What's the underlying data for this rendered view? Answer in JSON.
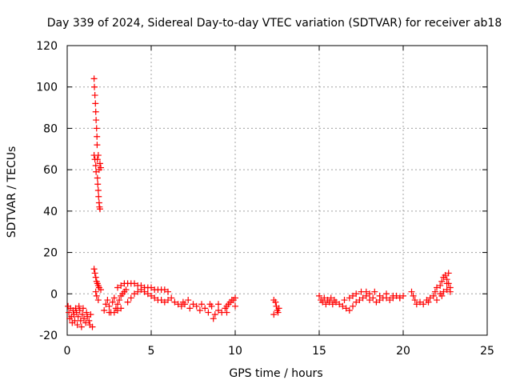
{
  "chart_data": {
    "type": "scatter",
    "title": "Day 339 of 2024, Sidereal Day-to-day VTEC variation (SDTVAR) for receiver ab18",
    "xlabel": "GPS time / hours",
    "ylabel": "SDTVAR / TECUs",
    "xlim": [
      0,
      25
    ],
    "ylim": [
      -20,
      120
    ],
    "xticks": [
      0,
      5,
      10,
      15,
      20,
      25
    ],
    "yticks": [
      -20,
      0,
      20,
      40,
      60,
      80,
      100,
      120
    ],
    "xtick_labels": [
      "0",
      "5",
      "10",
      "15",
      "20",
      "25"
    ],
    "ytick_labels": [
      "-20",
      "0",
      "20",
      "40",
      "60",
      "80",
      "100",
      "120"
    ],
    "grid": true,
    "marker": "+",
    "color": "#ff0000",
    "series": [
      {
        "name": "SDTVAR",
        "points": [
          [
            0.05,
            -6
          ],
          [
            0.1,
            -9
          ],
          [
            0.15,
            -12
          ],
          [
            0.2,
            -7
          ],
          [
            0.25,
            -11
          ],
          [
            0.3,
            -14
          ],
          [
            0.35,
            -8
          ],
          [
            0.4,
            -10
          ],
          [
            0.45,
            -13
          ],
          [
            0.5,
            -7
          ],
          [
            0.55,
            -9
          ],
          [
            0.6,
            -15
          ],
          [
            0.65,
            -11
          ],
          [
            0.7,
            -6
          ],
          [
            0.75,
            -8
          ],
          [
            0.8,
            -13
          ],
          [
            0.85,
            -16
          ],
          [
            0.9,
            -10
          ],
          [
            0.95,
            -7
          ],
          [
            1.0,
            -12
          ],
          [
            1.1,
            -14
          ],
          [
            1.15,
            -9
          ],
          [
            1.2,
            -11
          ],
          [
            1.3,
            -13
          ],
          [
            1.35,
            -15
          ],
          [
            1.4,
            -10
          ],
          [
            1.5,
            -16
          ],
          [
            1.6,
            104
          ],
          [
            1.62,
            100
          ],
          [
            1.65,
            96
          ],
          [
            1.68,
            92
          ],
          [
            1.7,
            88
          ],
          [
            1.72,
            84
          ],
          [
            1.75,
            80
          ],
          [
            1.77,
            76
          ],
          [
            1.78,
            72
          ],
          [
            1.6,
            67
          ],
          [
            1.65,
            65
          ],
          [
            1.7,
            62
          ],
          [
            1.72,
            59
          ],
          [
            1.8,
            56
          ],
          [
            1.82,
            53
          ],
          [
            1.85,
            50
          ],
          [
            1.87,
            47
          ],
          [
            1.9,
            44
          ],
          [
            1.92,
            42
          ],
          [
            1.95,
            41
          ],
          [
            1.9,
            60
          ],
          [
            1.95,
            63
          ],
          [
            2.0,
            61
          ],
          [
            1.85,
            67
          ],
          [
            1.8,
            65
          ],
          [
            1.6,
            12
          ],
          [
            1.65,
            10
          ],
          [
            1.7,
            8
          ],
          [
            1.75,
            6
          ],
          [
            1.8,
            5
          ],
          [
            1.85,
            4
          ],
          [
            1.9,
            3
          ],
          [
            2.0,
            2
          ],
          [
            1.7,
            1
          ],
          [
            1.75,
            -1
          ],
          [
            1.85,
            -3
          ],
          [
            2.2,
            -8
          ],
          [
            2.3,
            -5
          ],
          [
            2.4,
            -3
          ],
          [
            2.5,
            -6
          ],
          [
            2.6,
            -9
          ],
          [
            2.7,
            -4
          ],
          [
            2.8,
            -2
          ],
          [
            2.9,
            -7
          ],
          [
            3.0,
            -5
          ],
          [
            3.1,
            -3
          ],
          [
            3.2,
            -1
          ],
          [
            3.3,
            0
          ],
          [
            3.4,
            1
          ],
          [
            3.5,
            2
          ],
          [
            2.5,
            -9
          ],
          [
            2.8,
            -9
          ],
          [
            3.0,
            -8
          ],
          [
            3.2,
            -7
          ],
          [
            3.0,
            3
          ],
          [
            3.2,
            4
          ],
          [
            3.4,
            5
          ],
          [
            3.6,
            5
          ],
          [
            3.8,
            5
          ],
          [
            4.0,
            5
          ],
          [
            4.2,
            4
          ],
          [
            4.4,
            4
          ],
          [
            4.6,
            3
          ],
          [
            4.8,
            3
          ],
          [
            5.0,
            3
          ],
          [
            5.2,
            2
          ],
          [
            5.4,
            2
          ],
          [
            5.6,
            2
          ],
          [
            5.8,
            2
          ],
          [
            6.0,
            1
          ],
          [
            3.6,
            -4
          ],
          [
            3.8,
            -2
          ],
          [
            4.0,
            0
          ],
          [
            4.2,
            1
          ],
          [
            4.4,
            2
          ],
          [
            4.6,
            1
          ],
          [
            4.8,
            0
          ],
          [
            5.0,
            -1
          ],
          [
            5.2,
            -2
          ],
          [
            5.4,
            -3
          ],
          [
            5.6,
            -3
          ],
          [
            5.8,
            -4
          ],
          [
            6.0,
            -3
          ],
          [
            6.2,
            -2
          ],
          [
            6.4,
            -4
          ],
          [
            6.6,
            -5
          ],
          [
            6.8,
            -6
          ],
          [
            6.9,
            -4
          ],
          [
            7.0,
            -5
          ],
          [
            7.2,
            -3
          ],
          [
            7.3,
            -7
          ],
          [
            7.5,
            -5
          ],
          [
            7.7,
            -6
          ],
          [
            7.9,
            -8
          ],
          [
            8.0,
            -5
          ],
          [
            8.2,
            -7
          ],
          [
            8.4,
            -9
          ],
          [
            8.6,
            -6
          ],
          [
            8.7,
            -12
          ],
          [
            8.8,
            -10
          ],
          [
            9.0,
            -8
          ],
          [
            9.2,
            -9
          ],
          [
            9.4,
            -7
          ],
          [
            9.5,
            -6
          ],
          [
            9.6,
            -5
          ],
          [
            9.7,
            -4
          ],
          [
            9.8,
            -3
          ],
          [
            9.9,
            -3
          ],
          [
            10.0,
            -2
          ],
          [
            8.5,
            -5
          ],
          [
            9.0,
            -5
          ],
          [
            9.5,
            -9
          ],
          [
            10.0,
            -6
          ],
          [
            12.3,
            -3
          ],
          [
            12.4,
            -4
          ],
          [
            12.45,
            -6
          ],
          [
            12.5,
            -8
          ],
          [
            12.55,
            -9
          ],
          [
            12.6,
            -7
          ],
          [
            12.3,
            -10
          ],
          [
            15.0,
            -1
          ],
          [
            15.1,
            -3
          ],
          [
            15.2,
            -4
          ],
          [
            15.3,
            -2
          ],
          [
            15.4,
            -5
          ],
          [
            15.5,
            -3
          ],
          [
            15.6,
            -4
          ],
          [
            15.7,
            -2
          ],
          [
            15.8,
            -5
          ],
          [
            15.9,
            -3
          ],
          [
            16.0,
            -4
          ],
          [
            16.2,
            -5
          ],
          [
            16.4,
            -6
          ],
          [
            16.6,
            -7
          ],
          [
            16.8,
            -8
          ],
          [
            17.0,
            -6
          ],
          [
            17.2,
            -4
          ],
          [
            17.4,
            -3
          ],
          [
            17.6,
            -2
          ],
          [
            17.8,
            -1
          ],
          [
            18.0,
            -3
          ],
          [
            18.2,
            -2
          ],
          [
            18.4,
            -4
          ],
          [
            18.6,
            -3
          ],
          [
            18.8,
            -2
          ],
          [
            19.0,
            -2
          ],
          [
            19.2,
            -3
          ],
          [
            19.4,
            -2
          ],
          [
            19.6,
            -1
          ],
          [
            19.8,
            -2
          ],
          [
            20.0,
            -1
          ],
          [
            16.5,
            -3
          ],
          [
            16.8,
            -2
          ],
          [
            17.0,
            -1
          ],
          [
            17.2,
            0
          ],
          [
            17.5,
            1
          ],
          [
            17.8,
            1
          ],
          [
            18.0,
            0
          ],
          [
            18.3,
            1
          ],
          [
            18.6,
            -1
          ],
          [
            19.0,
            0
          ],
          [
            19.4,
            -1
          ],
          [
            19.8,
            -2
          ],
          [
            20.5,
            1
          ],
          [
            20.6,
            -1
          ],
          [
            20.7,
            -3
          ],
          [
            20.8,
            -5
          ],
          [
            21.0,
            -4
          ],
          [
            21.2,
            -5
          ],
          [
            21.4,
            -3
          ],
          [
            21.5,
            -4
          ],
          [
            21.6,
            -2
          ],
          [
            21.8,
            -1
          ],
          [
            21.9,
            1
          ],
          [
            22.0,
            3
          ],
          [
            22.2,
            4
          ],
          [
            22.3,
            6
          ],
          [
            22.4,
            8
          ],
          [
            22.5,
            9
          ],
          [
            22.6,
            7
          ],
          [
            22.7,
            5
          ],
          [
            22.8,
            3
          ],
          [
            22.2,
            0
          ],
          [
            22.4,
            1
          ],
          [
            22.6,
            2
          ],
          [
            22.8,
            1
          ],
          [
            22.0,
            -3
          ],
          [
            22.3,
            -1
          ],
          [
            22.6,
            5
          ],
          [
            22.7,
            10
          ]
        ]
      }
    ]
  }
}
